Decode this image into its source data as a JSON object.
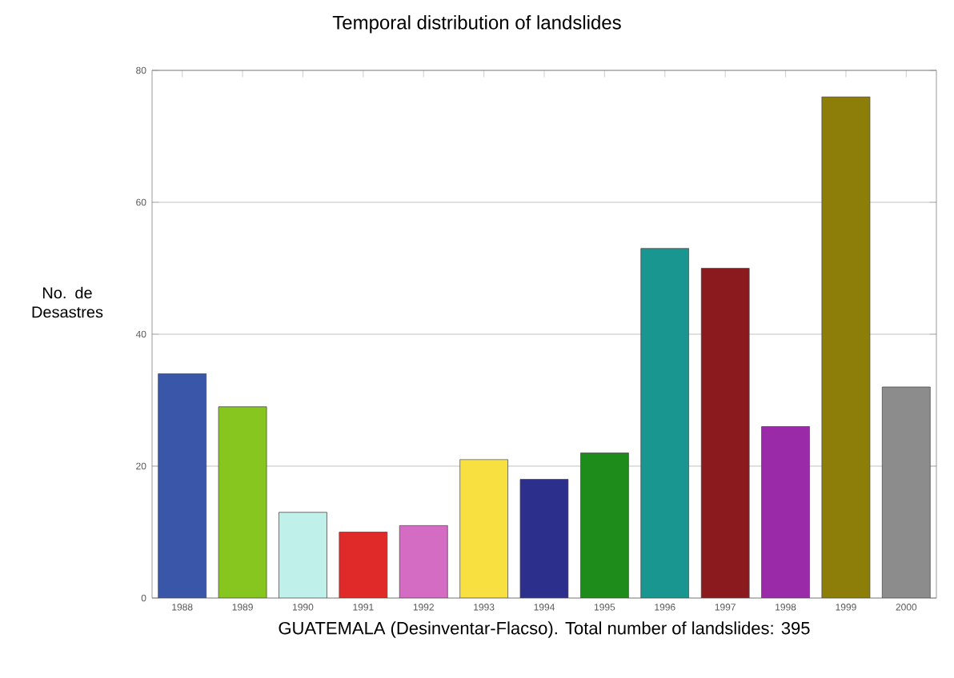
{
  "chart_data": {
    "type": "bar",
    "title": "Temporal distribution of landslides",
    "ylabel": "No. de Desastres",
    "xlabel": "GUATEMALA (Desinventar-Flacso). Total number of landslides: 395",
    "categories": [
      "1988",
      "1989",
      "1990",
      "1991",
      "1992",
      "1993",
      "1994",
      "1995",
      "1996",
      "1997",
      "1998",
      "1999",
      "2000"
    ],
    "values": [
      34,
      29,
      13,
      10,
      11,
      21,
      18,
      22,
      53,
      50,
      26,
      76,
      32
    ],
    "colors": [
      "#3a56a8",
      "#86c61e",
      "#bff0ea",
      "#e02a2a",
      "#d46cc4",
      "#f8e040",
      "#2c2f8c",
      "#1e8c1a",
      "#1a9690",
      "#8a1a1e",
      "#9a2aa8",
      "#8c7e08",
      "#8c8c8c"
    ],
    "ylim": [
      0,
      80
    ],
    "yticks": [
      0,
      20,
      40,
      60,
      80
    ],
    "grid": "y"
  }
}
